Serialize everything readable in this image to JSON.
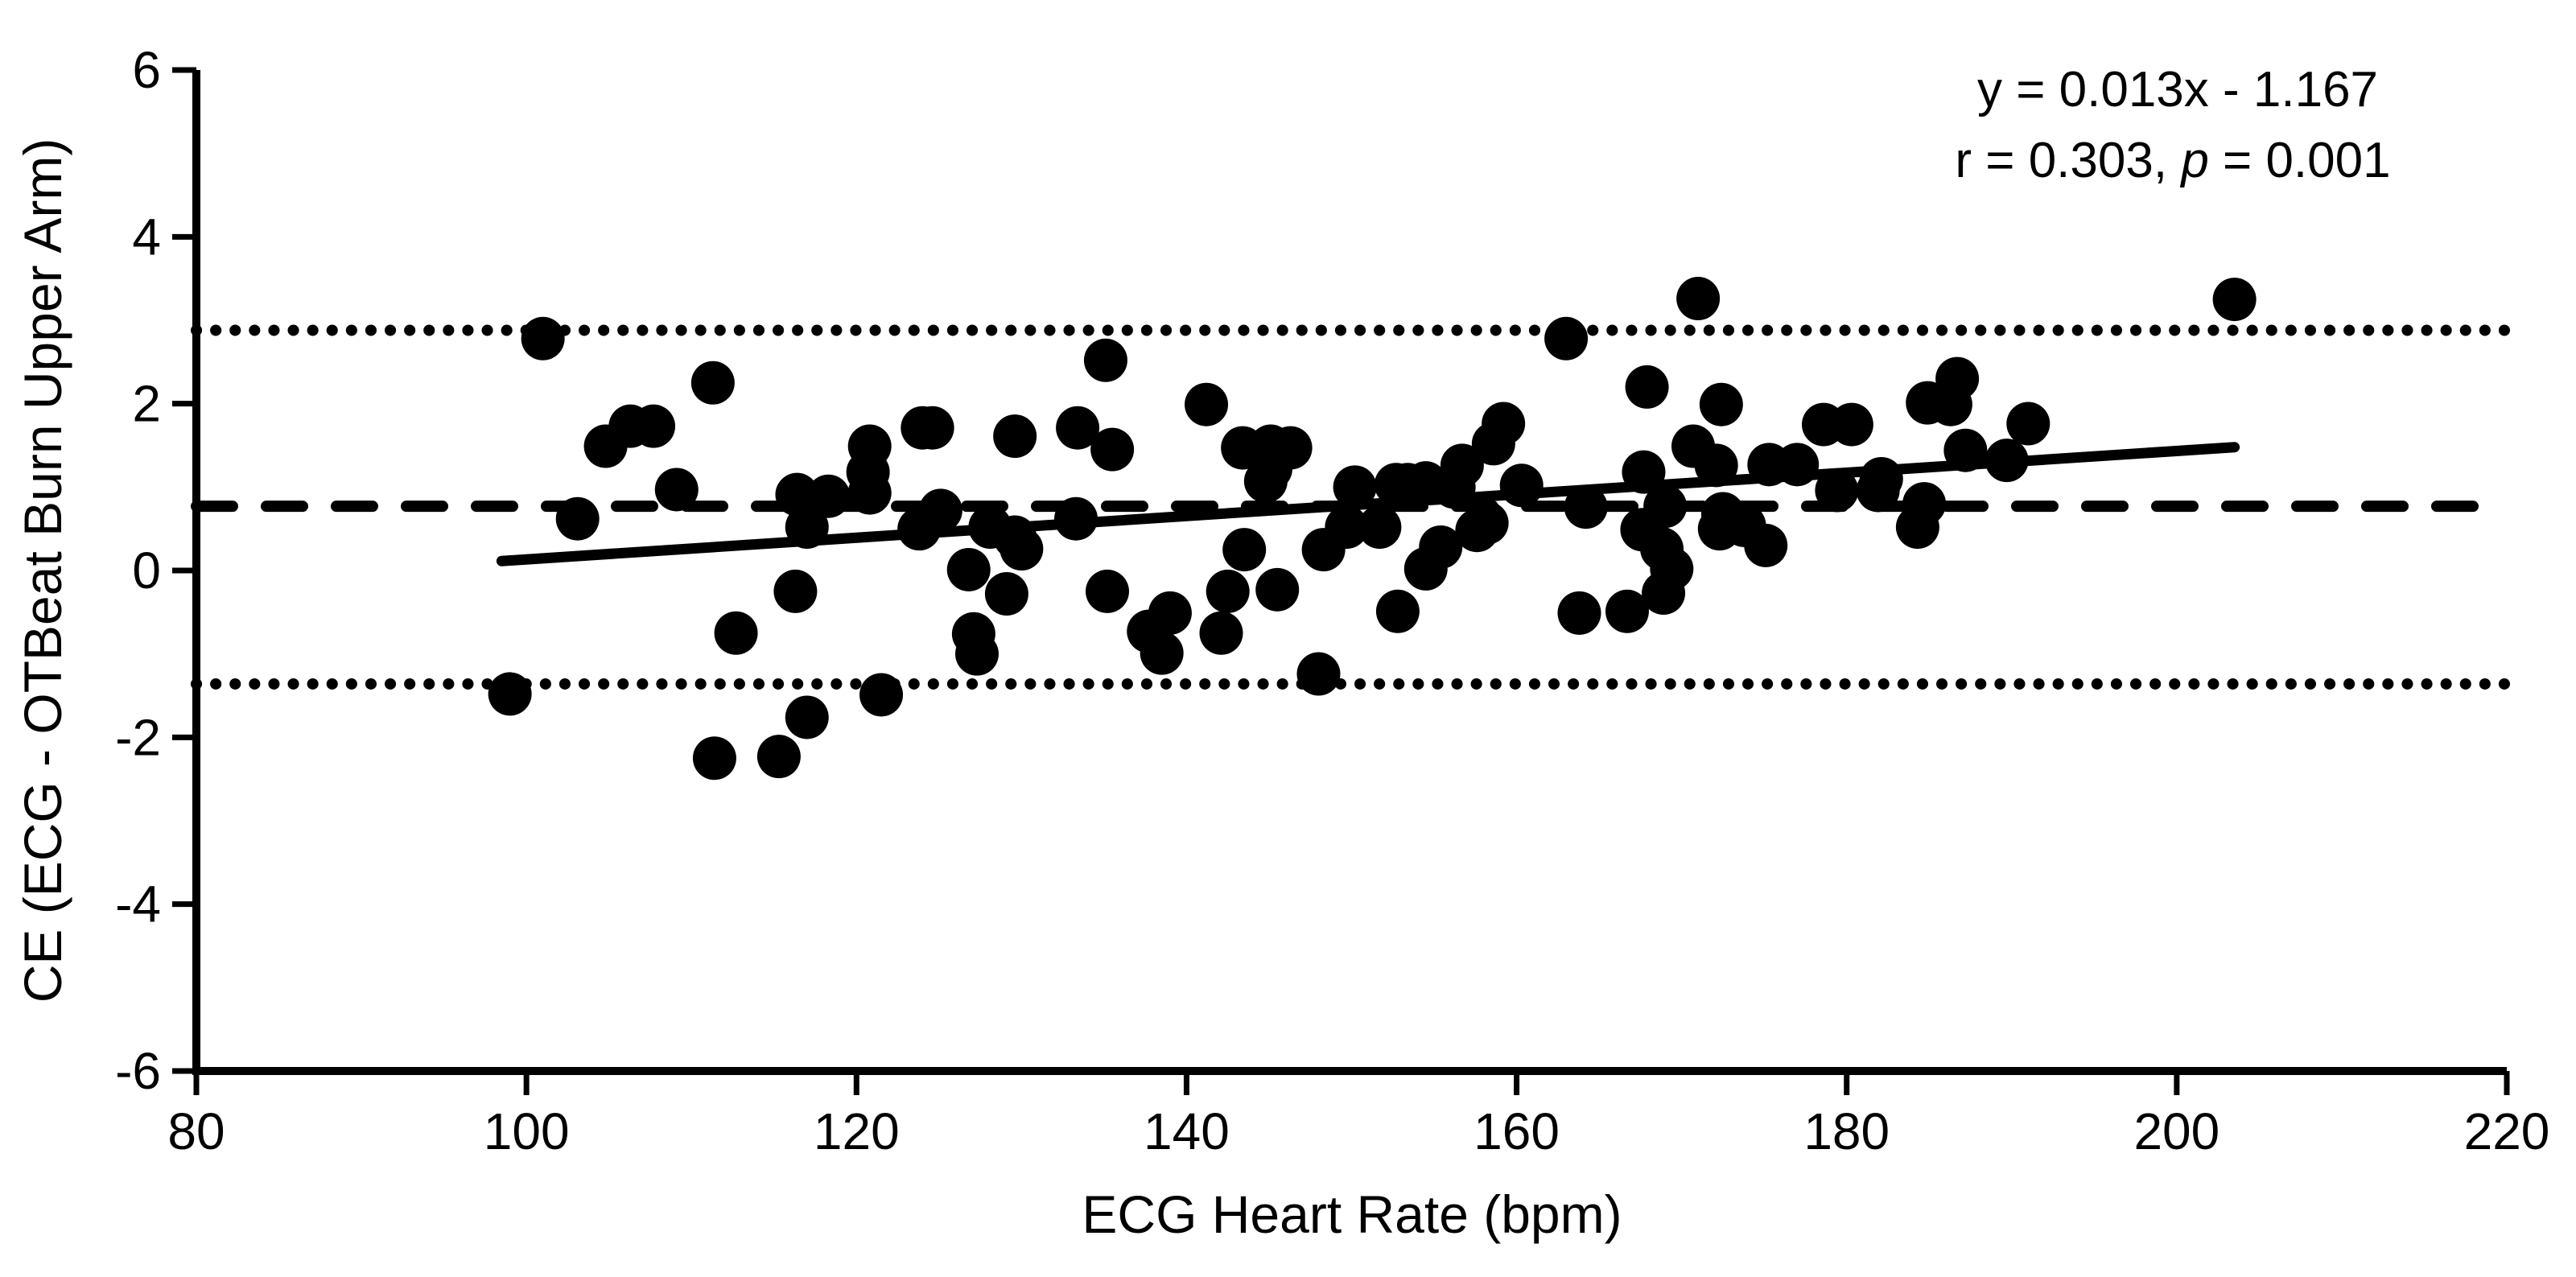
{
  "chart_data": {
    "type": "scatter",
    "title": "",
    "xlabel": "ECG Heart Rate (bpm)",
    "ylabel": "CE (ECG - OTBeat Burn Upper Arm)",
    "xlim": [
      80,
      220
    ],
    "ylim": [
      -6,
      6
    ],
    "xticks": [
      80,
      100,
      120,
      140,
      160,
      180,
      200,
      220
    ],
    "yticks": [
      6,
      4,
      2,
      0,
      -2,
      -4,
      -6
    ],
    "grid": false,
    "legend": "none",
    "annotation": {
      "line1": "y = 0.013x - 1.167",
      "line2_prefix": "r = 0.303, ",
      "line2_italic": "p",
      "line2_suffix": " = 0.001"
    },
    "regression_line": {
      "slope": 0.013,
      "intercept": -1.167,
      "x_start": 98.5,
      "x_end": 203.5
    },
    "reference_lines": {
      "mean_bias": {
        "value": 0.77,
        "style": "dashed"
      },
      "upper_loa": {
        "value": 2.88,
        "style": "dotted"
      },
      "lower_loa": {
        "value": -1.36,
        "style": "dotted"
      }
    },
    "points": [
      [
        101,
        2.78
      ],
      [
        111.3,
        2.25
      ],
      [
        106.3,
        1.73
      ],
      [
        107.7,
        1.73
      ],
      [
        104.8,
        1.49
      ],
      [
        109.1,
        0.97
      ],
      [
        103.1,
        0.62
      ],
      [
        99,
        -1.48
      ],
      [
        111.4,
        -2.25
      ],
      [
        115.3,
        -2.23
      ],
      [
        112.7,
        -0.75
      ],
      [
        117,
        -1.76
      ],
      [
        116.3,
        -0.25
      ],
      [
        117,
        0.52
      ],
      [
        116.4,
        0.91
      ],
      [
        118.3,
        0.89
      ],
      [
        120.8,
        1.49
      ],
      [
        120.7,
        1.18
      ],
      [
        120.8,
        0.93
      ],
      [
        123.8,
        0.5
      ],
      [
        124,
        1.71
      ],
      [
        124.6,
        1.71
      ],
      [
        125.1,
        0.72
      ],
      [
        126.8,
        0.01
      ],
      [
        127.1,
        -0.76
      ],
      [
        127.3,
        -1
      ],
      [
        121.5,
        -1.49
      ],
      [
        129.6,
        1.61
      ],
      [
        129.6,
        0.4
      ],
      [
        130,
        0.26
      ],
      [
        128.1,
        0.52
      ],
      [
        129.1,
        -0.28
      ],
      [
        133.4,
        1.71
      ],
      [
        133.3,
        0.62
      ],
      [
        135.1,
        2.52
      ],
      [
        135.5,
        1.45
      ],
      [
        135.2,
        -0.25
      ],
      [
        137.7,
        -0.73
      ],
      [
        139,
        -0.51
      ],
      [
        138.5,
        -0.99
      ],
      [
        141.2,
        1.99
      ],
      [
        143.4,
        1.47
      ],
      [
        145.1,
        1.49
      ],
      [
        146.3,
        1.47
      ],
      [
        145.1,
        1.22
      ],
      [
        144.8,
        1.07
      ],
      [
        142.5,
        -0.25
      ],
      [
        142.1,
        -0.75
      ],
      [
        143.5,
        0.25
      ],
      [
        145.5,
        -0.23
      ],
      [
        148.3,
        0.25
      ],
      [
        148,
        -1.24
      ],
      [
        149.7,
        0.52
      ],
      [
        151.7,
        0.52
      ],
      [
        150.2,
        1
      ],
      [
        152.7,
        1.03
      ],
      [
        153.4,
        1.03
      ],
      [
        155.4,
        0.28
      ],
      [
        154.5,
        0.02
      ],
      [
        154.5,
        1.05
      ],
      [
        156.2,
        1
      ],
      [
        156.7,
        1.26
      ],
      [
        157.6,
        0.48
      ],
      [
        158.2,
        0.57
      ],
      [
        158.6,
        1.52
      ],
      [
        159.2,
        1.76
      ],
      [
        160.3,
        1.02
      ],
      [
        152.8,
        -0.49
      ],
      [
        163,
        2.78
      ],
      [
        167.9,
        2.2
      ],
      [
        167.7,
        1.18
      ],
      [
        170.7,
        1.49
      ],
      [
        172.1,
        1.26
      ],
      [
        171,
        3.26
      ],
      [
        172.4,
        1.99
      ],
      [
        175.3,
        1.27
      ],
      [
        177,
        1.27
      ],
      [
        178.6,
        1.75
      ],
      [
        180.3,
        1.75
      ],
      [
        179.4,
        0.96
      ],
      [
        181.9,
        0.96
      ],
      [
        184.9,
        2.01
      ],
      [
        186.3,
        1.99
      ],
      [
        186.7,
        2.3
      ],
      [
        191,
        1.76
      ],
      [
        187.2,
        1.44
      ],
      [
        189.7,
        1.32
      ],
      [
        182.1,
        1.1
      ],
      [
        184.7,
        0.8
      ],
      [
        184.3,
        0.52
      ],
      [
        164.2,
        0.76
      ],
      [
        169,
        0.77
      ],
      [
        167.6,
        0.49
      ],
      [
        168.8,
        0.26
      ],
      [
        169.4,
        0.02
      ],
      [
        168.9,
        -0.27
      ],
      [
        172.3,
        0.5
      ],
      [
        173.8,
        0.54
      ],
      [
        175.1,
        0.3
      ],
      [
        172.5,
        0.68
      ],
      [
        163.8,
        -0.51
      ],
      [
        166.7,
        -0.49
      ],
      [
        203.5,
        3.25
      ]
    ],
    "colors": {
      "marker": "#000000",
      "axis": "#000000",
      "background": "#ffffff"
    }
  }
}
